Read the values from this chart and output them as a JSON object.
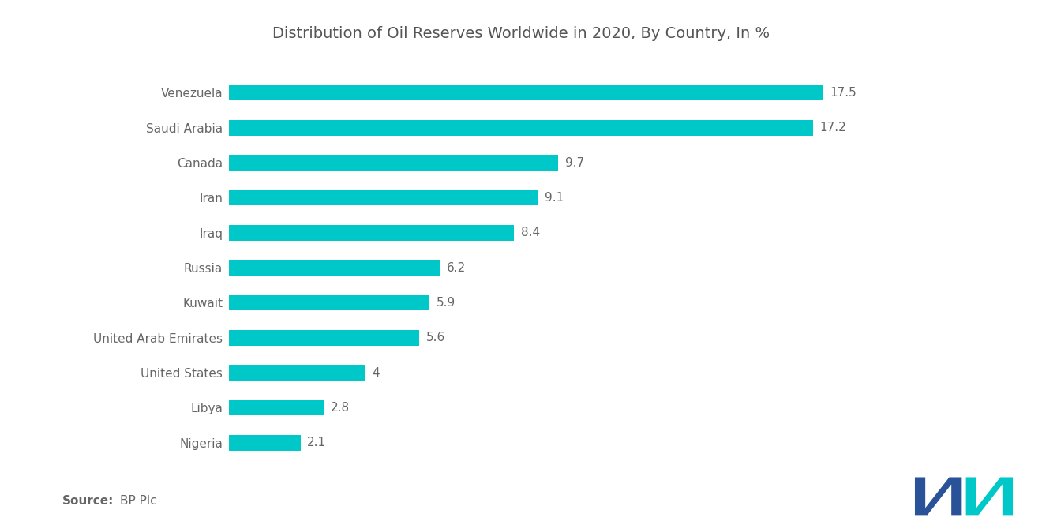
{
  "title": "Distribution of Oil Reserves Worldwide in 2020, By Country, In %",
  "countries": [
    "Venezuela",
    "Saudi Arabia",
    "Canada",
    "Iran",
    "Iraq",
    "Russia",
    "Kuwait",
    "United Arab Emirates",
    "United States",
    "Libya",
    "Nigeria"
  ],
  "values": [
    17.5,
    17.2,
    9.7,
    9.1,
    8.4,
    6.2,
    5.9,
    5.6,
    4.0,
    2.8,
    2.1
  ],
  "bar_color": "#00C8C8",
  "background_color": "#ffffff",
  "title_color": "#555555",
  "label_color": "#666666",
  "value_color": "#666666",
  "source_bold": "Source:",
  "source_text": "BP Plc",
  "title_fontsize": 14,
  "label_fontsize": 11,
  "value_fontsize": 11,
  "source_fontsize": 11,
  "bar_height": 0.45,
  "xlim": [
    0,
    21.5
  ]
}
